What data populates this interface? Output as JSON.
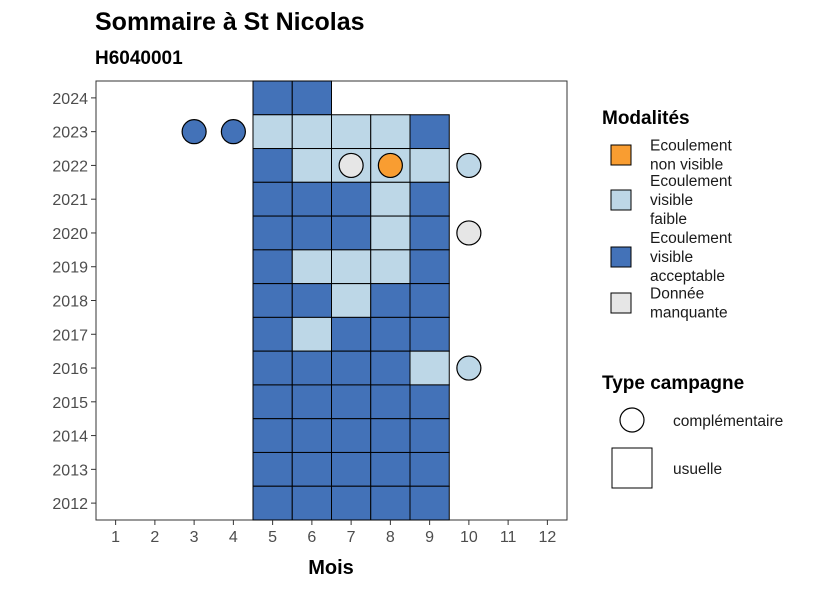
{
  "chart_data": {
    "type": "heatmap",
    "title": "Sommaire à St Nicolas",
    "subtitle": "H6040001",
    "xlabel": "Mois",
    "ylabel": "",
    "x_ticks": [
      1,
      2,
      3,
      4,
      5,
      6,
      7,
      8,
      9,
      10,
      11,
      12
    ],
    "y_ticks": [
      2012,
      2013,
      2014,
      2015,
      2016,
      2017,
      2018,
      2019,
      2020,
      2021,
      2022,
      2023,
      2024
    ],
    "xlim": [
      0.5,
      12.5
    ],
    "ylim": [
      2011.5,
      2024.5
    ],
    "grid": false,
    "colors": {
      "non_visible": "#f99d31",
      "faible": "#bdd7e7",
      "acceptable": "#4372b8",
      "manquante": "#e6e6e6"
    },
    "modalites_legend": {
      "title": "Modalités",
      "position": "right",
      "entries": [
        {
          "key": "non_visible",
          "lines": [
            "Ecoulement",
            "non visible"
          ]
        },
        {
          "key": "faible",
          "lines": [
            "Ecoulement",
            "visible",
            "faible"
          ]
        },
        {
          "key": "acceptable",
          "lines": [
            "Ecoulement",
            "visible",
            "acceptable"
          ]
        },
        {
          "key": "manquante",
          "lines": [
            "Donnée",
            "manquante"
          ]
        }
      ]
    },
    "campagne_legend": {
      "title": "Type campagne",
      "position": "right",
      "entries": [
        {
          "shape": "circle",
          "label": "complémentaire"
        },
        {
          "shape": "square",
          "label": "usuelle"
        }
      ]
    },
    "usuelle": [
      {
        "year": 2024,
        "month": 5,
        "modalite": "acceptable"
      },
      {
        "year": 2024,
        "month": 6,
        "modalite": "acceptable"
      },
      {
        "year": 2023,
        "month": 5,
        "modalite": "faible"
      },
      {
        "year": 2023,
        "month": 6,
        "modalite": "faible"
      },
      {
        "year": 2023,
        "month": 7,
        "modalite": "faible"
      },
      {
        "year": 2023,
        "month": 8,
        "modalite": "faible"
      },
      {
        "year": 2023,
        "month": 9,
        "modalite": "acceptable"
      },
      {
        "year": 2022,
        "month": 5,
        "modalite": "acceptable"
      },
      {
        "year": 2022,
        "month": 6,
        "modalite": "faible"
      },
      {
        "year": 2022,
        "month": 7,
        "modalite": "faible"
      },
      {
        "year": 2022,
        "month": 8,
        "modalite": "faible"
      },
      {
        "year": 2022,
        "month": 9,
        "modalite": "faible"
      },
      {
        "year": 2021,
        "month": 5,
        "modalite": "acceptable"
      },
      {
        "year": 2021,
        "month": 6,
        "modalite": "acceptable"
      },
      {
        "year": 2021,
        "month": 7,
        "modalite": "acceptable"
      },
      {
        "year": 2021,
        "month": 8,
        "modalite": "faible"
      },
      {
        "year": 2021,
        "month": 9,
        "modalite": "acceptable"
      },
      {
        "year": 2020,
        "month": 5,
        "modalite": "acceptable"
      },
      {
        "year": 2020,
        "month": 6,
        "modalite": "acceptable"
      },
      {
        "year": 2020,
        "month": 7,
        "modalite": "acceptable"
      },
      {
        "year": 2020,
        "month": 8,
        "modalite": "faible"
      },
      {
        "year": 2020,
        "month": 9,
        "modalite": "acceptable"
      },
      {
        "year": 2019,
        "month": 5,
        "modalite": "acceptable"
      },
      {
        "year": 2019,
        "month": 6,
        "modalite": "faible"
      },
      {
        "year": 2019,
        "month": 7,
        "modalite": "faible"
      },
      {
        "year": 2019,
        "month": 8,
        "modalite": "faible"
      },
      {
        "year": 2019,
        "month": 9,
        "modalite": "acceptable"
      },
      {
        "year": 2018,
        "month": 5,
        "modalite": "acceptable"
      },
      {
        "year": 2018,
        "month": 6,
        "modalite": "acceptable"
      },
      {
        "year": 2018,
        "month": 7,
        "modalite": "faible"
      },
      {
        "year": 2018,
        "month": 8,
        "modalite": "acceptable"
      },
      {
        "year": 2018,
        "month": 9,
        "modalite": "acceptable"
      },
      {
        "year": 2017,
        "month": 5,
        "modalite": "acceptable"
      },
      {
        "year": 2017,
        "month": 6,
        "modalite": "faible"
      },
      {
        "year": 2017,
        "month": 7,
        "modalite": "acceptable"
      },
      {
        "year": 2017,
        "month": 8,
        "modalite": "acceptable"
      },
      {
        "year": 2017,
        "month": 9,
        "modalite": "acceptable"
      },
      {
        "year": 2016,
        "month": 5,
        "modalite": "acceptable"
      },
      {
        "year": 2016,
        "month": 6,
        "modalite": "acceptable"
      },
      {
        "year": 2016,
        "month": 7,
        "modalite": "acceptable"
      },
      {
        "year": 2016,
        "month": 8,
        "modalite": "acceptable"
      },
      {
        "year": 2016,
        "month": 9,
        "modalite": "faible"
      },
      {
        "year": 2015,
        "month": 5,
        "modalite": "acceptable"
      },
      {
        "year": 2015,
        "month": 6,
        "modalite": "acceptable"
      },
      {
        "year": 2015,
        "month": 7,
        "modalite": "acceptable"
      },
      {
        "year": 2015,
        "month": 8,
        "modalite": "acceptable"
      },
      {
        "year": 2015,
        "month": 9,
        "modalite": "acceptable"
      },
      {
        "year": 2014,
        "month": 5,
        "modalite": "acceptable"
      },
      {
        "year": 2014,
        "month": 6,
        "modalite": "acceptable"
      },
      {
        "year": 2014,
        "month": 7,
        "modalite": "acceptable"
      },
      {
        "year": 2014,
        "month": 8,
        "modalite": "acceptable"
      },
      {
        "year": 2014,
        "month": 9,
        "modalite": "acceptable"
      },
      {
        "year": 2013,
        "month": 5,
        "modalite": "acceptable"
      },
      {
        "year": 2013,
        "month": 6,
        "modalite": "acceptable"
      },
      {
        "year": 2013,
        "month": 7,
        "modalite": "acceptable"
      },
      {
        "year": 2013,
        "month": 8,
        "modalite": "acceptable"
      },
      {
        "year": 2013,
        "month": 9,
        "modalite": "acceptable"
      },
      {
        "year": 2012,
        "month": 5,
        "modalite": "acceptable"
      },
      {
        "year": 2012,
        "month": 6,
        "modalite": "acceptable"
      },
      {
        "year": 2012,
        "month": 7,
        "modalite": "acceptable"
      },
      {
        "year": 2012,
        "month": 8,
        "modalite": "acceptable"
      },
      {
        "year": 2012,
        "month": 9,
        "modalite": "acceptable"
      }
    ],
    "complementaire": [
      {
        "year": 2023,
        "month": 3,
        "modalite": "acceptable"
      },
      {
        "year": 2023,
        "month": 4,
        "modalite": "acceptable"
      },
      {
        "year": 2022,
        "month": 7,
        "modalite": "manquante"
      },
      {
        "year": 2022,
        "month": 8,
        "modalite": "non_visible"
      },
      {
        "year": 2022,
        "month": 10,
        "modalite": "faible"
      },
      {
        "year": 2020,
        "month": 10,
        "modalite": "manquante"
      },
      {
        "year": 2016,
        "month": 10,
        "modalite": "faible"
      }
    ]
  }
}
